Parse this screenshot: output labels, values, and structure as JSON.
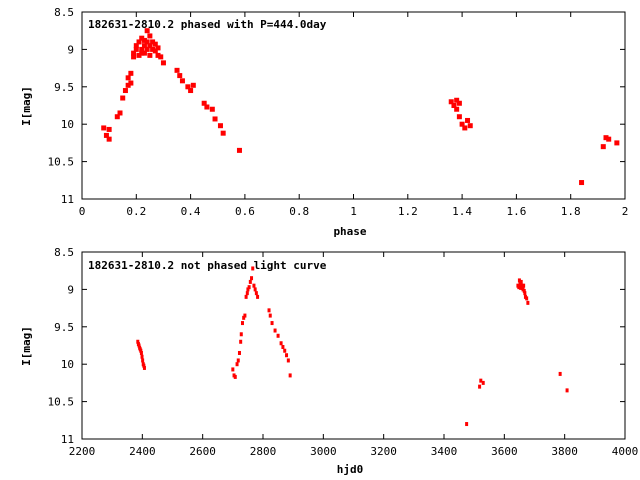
{
  "chart_data": [
    {
      "type": "scatter",
      "title": "182631-2810.2 phased with P=444.0day",
      "xlabel": "phase",
      "ylabel": "I[mag]",
      "xlim": [
        0,
        2
      ],
      "ylim": [
        8.5,
        11
      ],
      "y_inverted": true,
      "grid": false,
      "x_ticks": [
        "0",
        "0.2",
        "0.4",
        "0.6",
        "0.8",
        "1",
        "1.2",
        "1.4",
        "1.6",
        "1.8",
        "2"
      ],
      "y_ticks": [
        "8.5",
        "9",
        "9.5",
        "10",
        "10.5",
        "11"
      ],
      "marker_color": "#ff0000",
      "series": [
        {
          "x": [
            0.08,
            0.09,
            0.1,
            0.1,
            0.13,
            0.14,
            0.15,
            0.16,
            0.17,
            0.17,
            0.18,
            0.18,
            0.19,
            0.19,
            0.2,
            0.2,
            0.21,
            0.21,
            0.22,
            0.22,
            0.22,
            0.23,
            0.23,
            0.23,
            0.24,
            0.24,
            0.24,
            0.25,
            0.25,
            0.25,
            0.26,
            0.26,
            0.27,
            0.27,
            0.28,
            0.28,
            0.29,
            0.3,
            0.35,
            0.36,
            0.37,
            0.39,
            0.4,
            0.41,
            0.45,
            0.46,
            0.48,
            0.49,
            0.51,
            0.52,
            0.58,
            1.36,
            1.37,
            1.38,
            1.38,
            1.39,
            1.39,
            1.4,
            1.41,
            1.42,
            1.43,
            1.84,
            1.92,
            1.93,
            1.94,
            1.97
          ],
          "y": [
            10.05,
            10.15,
            10.2,
            10.07,
            9.9,
            9.85,
            9.65,
            9.55,
            9.48,
            9.38,
            9.32,
            9.45,
            9.1,
            9.05,
            9.0,
            8.95,
            8.9,
            9.08,
            8.85,
            9.0,
            9.05,
            8.95,
            8.88,
            9.05,
            8.75,
            8.9,
            9.0,
            8.82,
            8.95,
            9.08,
            8.9,
            9.0,
            8.93,
            9.02,
            9.08,
            8.98,
            9.1,
            9.18,
            9.28,
            9.35,
            9.42,
            9.5,
            9.55,
            9.48,
            9.72,
            9.77,
            9.8,
            9.93,
            10.02,
            10.12,
            10.35,
            9.7,
            9.75,
            9.68,
            9.8,
            9.72,
            9.9,
            10.0,
            10.05,
            9.95,
            10.02,
            10.78,
            10.3,
            10.18,
            10.2,
            10.25
          ]
        }
      ]
    },
    {
      "type": "scatter",
      "title": "182631-2810.2 not phased light curve",
      "xlabel": "hjd0",
      "ylabel": "I[mag]",
      "xlim": [
        2200,
        4000
      ],
      "ylim": [
        8.5,
        11
      ],
      "y_inverted": true,
      "grid": false,
      "x_ticks": [
        "2200",
        "2400",
        "2600",
        "2800",
        "3000",
        "3200",
        "3400",
        "3600",
        "3800",
        "4000"
      ],
      "y_ticks": [
        "8.5",
        "9",
        "9.5",
        "10",
        "10.5",
        "11"
      ],
      "marker_color": "#ff0000",
      "series": [
        {
          "x": [
            2385,
            2387,
            2389,
            2391,
            2393,
            2395,
            2397,
            2399,
            2401,
            2403,
            2405,
            2407,
            2700,
            2704,
            2708,
            2714,
            2718,
            2722,
            2726,
            2728,
            2732,
            2736,
            2740,
            2744,
            2748,
            2750,
            2754,
            2758,
            2762,
            2766,
            2770,
            2774,
            2778,
            2782,
            2820,
            2824,
            2830,
            2840,
            2850,
            2860,
            2866,
            2872,
            2878,
            2884,
            2890,
            3475,
            3518,
            3522,
            3530,
            3645,
            3648,
            3650,
            3652,
            3654,
            3656,
            3658,
            3660,
            3662,
            3664,
            3666,
            3668,
            3670,
            3674,
            3678,
            3785,
            3808
          ],
          "y": [
            9.7,
            9.73,
            9.75,
            9.78,
            9.8,
            9.82,
            9.85,
            9.9,
            9.95,
            10.0,
            10.02,
            10.05,
            10.07,
            10.15,
            10.17,
            10.0,
            9.95,
            9.85,
            9.7,
            9.6,
            9.45,
            9.38,
            9.35,
            9.1,
            9.05,
            9.0,
            8.97,
            8.9,
            8.85,
            8.72,
            8.95,
            9.0,
            9.05,
            9.1,
            9.28,
            9.35,
            9.45,
            9.55,
            9.62,
            9.72,
            9.77,
            9.82,
            9.88,
            9.95,
            10.15,
            10.8,
            10.3,
            10.22,
            10.25,
            8.95,
            8.97,
            8.88,
            8.93,
            8.98,
            8.9,
            8.95,
            8.98,
            9.0,
            8.95,
            9.02,
            9.05,
            9.1,
            9.12,
            9.18,
            10.13,
            10.35
          ]
        }
      ]
    }
  ]
}
